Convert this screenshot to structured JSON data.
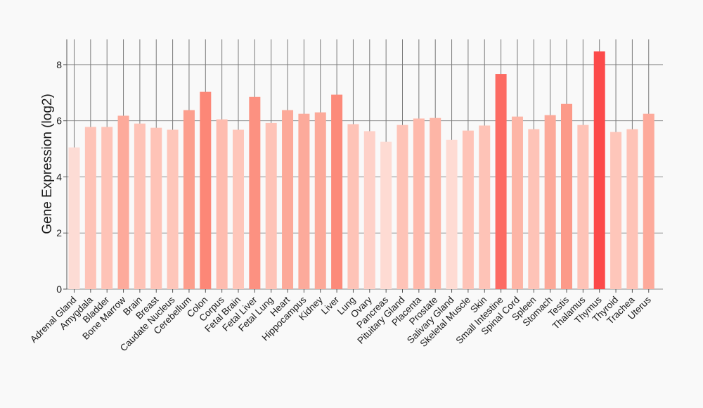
{
  "chart_data": {
    "type": "bar",
    "title": "",
    "xlabel": "",
    "ylabel": "Gene Expression (log2)",
    "ylim": [
      0,
      8.9
    ],
    "yticks": [
      0,
      2,
      4,
      6,
      8
    ],
    "grid": true,
    "categories": [
      "Adrenal Gland",
      "Amygdala",
      "Bladder",
      "Bone Marrow",
      "Brain",
      "Breast",
      "Caudate Nucleus",
      "Cerebellum",
      "Colon",
      "Corpus",
      "Fetal Brain",
      "Fetal Liver",
      "Fetal Lung",
      "Heart",
      "Hippocampus",
      "Kidney",
      "Liver",
      "Lung",
      "Ovary",
      "Pancreas",
      "Pituitary Gland",
      "Placenta",
      "Prostate",
      "Salivary Gland",
      "Skeletal Muscle",
      "Skin",
      "Small Intestine",
      "Spinal Cord",
      "Spleen",
      "Stomach",
      "Testis",
      "Thalamus",
      "Thymus",
      "Thyroid",
      "Trachea",
      "Uterus"
    ],
    "values": [
      5.05,
      5.78,
      5.78,
      6.18,
      5.9,
      5.75,
      5.68,
      6.38,
      7.03,
      6.05,
      5.68,
      6.85,
      5.92,
      6.38,
      6.25,
      6.3,
      6.93,
      5.88,
      5.63,
      5.25,
      5.85,
      6.08,
      6.1,
      5.32,
      5.65,
      5.83,
      7.67,
      6.15,
      5.7,
      6.2,
      6.6,
      5.85,
      8.47,
      5.6,
      5.7,
      6.25
    ],
    "colors": [
      "#fddcd5",
      "#fec3b7",
      "#fec3b7",
      "#fdaa9b",
      "#fec3b7",
      "#fec3b7",
      "#fec6ba",
      "#fc9e8d",
      "#fc8777",
      "#febcaf",
      "#fec6ba",
      "#fc9181",
      "#fec3b7",
      "#fca999",
      "#fcaa9b",
      "#fca999",
      "#fc8a7a",
      "#fec3b7",
      "#fed1c8",
      "#fedbd3",
      "#fec3b7",
      "#feb9ab",
      "#fdb5a6",
      "#fedbd3",
      "#fec3b7",
      "#fec3b7",
      "#fc6b63",
      "#fdb5a6",
      "#fec3b7",
      "#fca999",
      "#fc9a89",
      "#fec3b7",
      "#fc4a4a",
      "#fec6ba",
      "#fec3b7",
      "#fdaa9b"
    ]
  }
}
